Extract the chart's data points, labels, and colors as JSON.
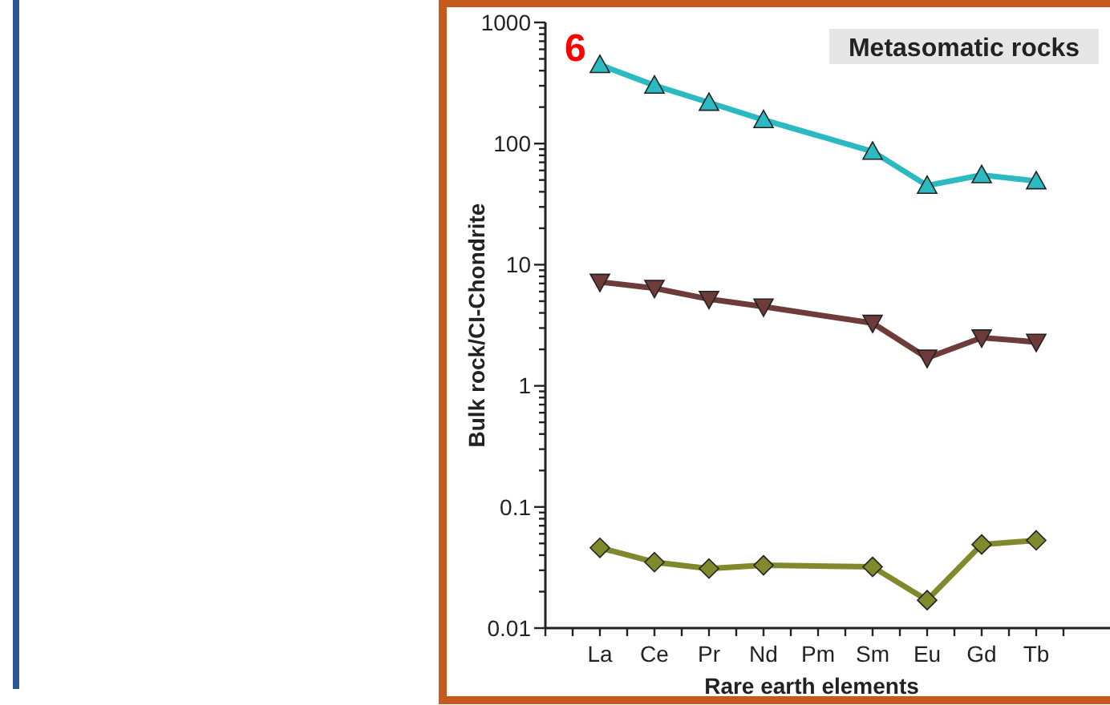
{
  "chart_data": {
    "type": "line",
    "title": "Metasomatic rocks",
    "xlabel": "Rare earth elements",
    "ylabel": "Bulk rock/CI-Chondrite",
    "annotations": [
      "6"
    ],
    "categories": [
      "La",
      "Ce",
      "Pr",
      "Nd",
      "Pm",
      "Sm",
      "Eu",
      "Gd",
      "Tb"
    ],
    "log": true,
    "ylim": [
      0.01,
      1000
    ],
    "yticks": [
      0.01,
      {
        "value": 0.02,
        "label": null
      },
      {
        "value": 0.03,
        "label": null
      },
      {
        "value": 0.04,
        "label": null
      },
      {
        "value": 0.05,
        "label": null
      },
      {
        "value": 0.06,
        "label": null
      },
      {
        "value": 0.07,
        "label": null
      },
      {
        "value": 0.08,
        "label": null
      },
      {
        "value": 0.09,
        "label": null
      },
      0.1,
      {
        "value": 0.2,
        "label": null
      },
      {
        "value": 0.3,
        "label": null
      },
      {
        "value": 0.4,
        "label": null
      },
      {
        "value": 0.5,
        "label": null
      },
      {
        "value": 0.6,
        "label": null
      },
      {
        "value": 0.7,
        "label": null
      },
      {
        "value": 0.8,
        "label": null
      },
      {
        "value": 0.9,
        "label": null
      },
      1,
      {
        "value": 2,
        "label": null
      },
      {
        "value": 3,
        "label": null
      },
      {
        "value": 4,
        "label": null
      },
      {
        "value": 5,
        "label": null
      },
      {
        "value": 6,
        "label": null
      },
      {
        "value": 7,
        "label": null
      },
      {
        "value": 8,
        "label": null
      },
      {
        "value": 9,
        "label": null
      },
      10,
      {
        "value": 20,
        "label": null
      },
      {
        "value": 30,
        "label": null
      },
      {
        "value": 40,
        "label": null
      },
      {
        "value": 50,
        "label": null
      },
      {
        "value": 60,
        "label": null
      },
      {
        "value": 70,
        "label": null
      },
      {
        "value": 80,
        "label": null
      },
      {
        "value": 90,
        "label": null
      },
      100,
      {
        "value": 200,
        "label": null
      },
      {
        "value": 300,
        "label": null
      },
      {
        "value": 400,
        "label": null
      },
      {
        "value": 500,
        "label": null
      },
      {
        "value": 600,
        "label": null
      },
      {
        "value": 700,
        "label": null
      },
      {
        "value": 800,
        "label": null
      },
      {
        "value": 900,
        "label": null
      },
      1000
    ],
    "grid": false,
    "line_style": "solid",
    "series": [
      {
        "color": "#2bbac2",
        "marker": "triangle",
        "values": [
          447,
          302,
          218,
          157,
          null,
          86,
          45,
          55,
          49
        ]
      },
      {
        "color": "#6e3b3b",
        "marker": "triangle-down",
        "values": [
          7.2,
          6.4,
          5.2,
          4.5,
          null,
          3.3,
          1.7,
          2.5,
          2.3
        ]
      },
      {
        "color": "#808a2c",
        "marker": "diamond",
        "values": [
          0.046,
          0.035,
          0.031,
          0.033,
          null,
          0.032,
          0.017,
          0.049,
          0.053
        ]
      }
    ]
  }
}
